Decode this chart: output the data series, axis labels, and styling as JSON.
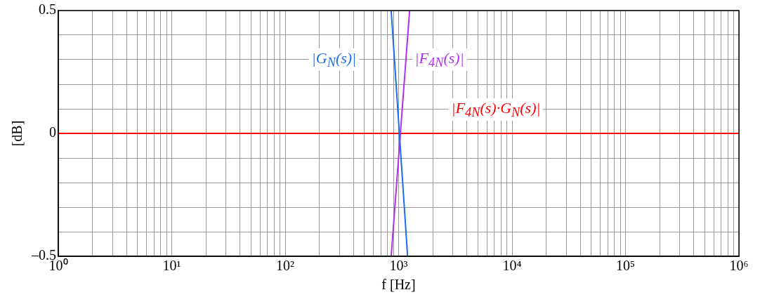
{
  "chart_data": {
    "type": "line",
    "xlabel": "f [Hz]",
    "ylabel": "[dB]",
    "log": "x",
    "grid": true,
    "xlim": [
      1,
      1000000
    ],
    "xticks": [
      {
        "value": 1,
        "label": "10⁰"
      },
      {
        "value": 2,
        "label": null
      },
      {
        "value": 3,
        "label": null
      },
      {
        "value": 4,
        "label": null
      },
      {
        "value": 5,
        "label": null
      },
      {
        "value": 6,
        "label": null
      },
      {
        "value": 7,
        "label": null
      },
      {
        "value": 8,
        "label": null
      },
      {
        "value": 9,
        "label": null
      },
      {
        "value": 10,
        "label": "10¹"
      },
      {
        "value": 20,
        "label": null
      },
      {
        "value": 30,
        "label": null
      },
      {
        "value": 40,
        "label": null
      },
      {
        "value": 50,
        "label": null
      },
      {
        "value": 60,
        "label": null
      },
      {
        "value": 70,
        "label": null
      },
      {
        "value": 80,
        "label": null
      },
      {
        "value": 90,
        "label": null
      },
      {
        "value": 100,
        "label": "10²"
      },
      {
        "value": 200,
        "label": null
      },
      {
        "value": 300,
        "label": null
      },
      {
        "value": 400,
        "label": null
      },
      {
        "value": 500,
        "label": null
      },
      {
        "value": 600,
        "label": null
      },
      {
        "value": 700,
        "label": null
      },
      {
        "value": 800,
        "label": null
      },
      {
        "value": 900,
        "label": null
      },
      {
        "value": 1000,
        "label": "10³"
      },
      {
        "value": 2000,
        "label": null
      },
      {
        "value": 3000,
        "label": null
      },
      {
        "value": 4000,
        "label": null
      },
      {
        "value": 5000,
        "label": null
      },
      {
        "value": 6000,
        "label": null
      },
      {
        "value": 7000,
        "label": null
      },
      {
        "value": 8000,
        "label": null
      },
      {
        "value": 9000,
        "label": null
      },
      {
        "value": 10000,
        "label": "10⁴"
      },
      {
        "value": 20000,
        "label": null
      },
      {
        "value": 30000,
        "label": null
      },
      {
        "value": 40000,
        "label": null
      },
      {
        "value": 50000,
        "label": null
      },
      {
        "value": 60000,
        "label": null
      },
      {
        "value": 70000,
        "label": null
      },
      {
        "value": 80000,
        "label": null
      },
      {
        "value": 90000,
        "label": null
      },
      {
        "value": 100000,
        "label": "10⁵"
      },
      {
        "value": 200000,
        "label": null
      },
      {
        "value": 300000,
        "label": null
      },
      {
        "value": 400000,
        "label": null
      },
      {
        "value": 500000,
        "label": null
      },
      {
        "value": 600000,
        "label": null
      },
      {
        "value": 700000,
        "label": null
      },
      {
        "value": 800000,
        "label": null
      },
      {
        "value": 900000,
        "label": null
      },
      {
        "value": 1000000,
        "label": "10⁶"
      }
    ],
    "ylim": [
      -0.5,
      0.5
    ],
    "yticks": [
      {
        "value": -0.5,
        "label": "–0.5"
      },
      {
        "value": -0.4,
        "label": null
      },
      {
        "value": -0.3,
        "label": null
      },
      {
        "value": -0.2,
        "label": null
      },
      {
        "value": -0.1,
        "label": null
      },
      {
        "value": 0,
        "label": "0"
      },
      {
        "value": 0.1,
        "label": null
      },
      {
        "value": 0.2,
        "label": null
      },
      {
        "value": 0.3,
        "label": null
      },
      {
        "value": 0.4,
        "label": null
      },
      {
        "value": 0.5,
        "label": "0.5"
      }
    ],
    "series": [
      {
        "name": "|G$_{N}$(s)|",
        "color": "#1a6cf0",
        "x": [
          860,
          1200
        ],
        "values": [
          0.5,
          -0.5
        ]
      },
      {
        "name": "|F$_{4N}$(s)|",
        "color": "#b02ef0",
        "x": [
          860,
          1250
        ],
        "values": [
          -0.5,
          0.5
        ]
      },
      {
        "name": "|F$_{4N}$(s)·G$_{N}$(s)|",
        "color": "#ff0000",
        "x": [
          1,
          1000000
        ],
        "values": [
          0,
          0
        ]
      }
    ]
  }
}
